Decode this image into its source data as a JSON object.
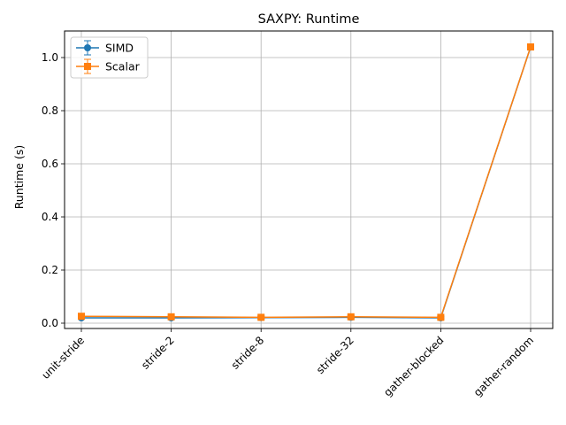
{
  "chart_data": {
    "type": "line",
    "title": "SAXPY: Runtime",
    "xlabel": "",
    "ylabel": "Runtime (s)",
    "categories": [
      "unit-stride",
      "stride-2",
      "stride-8",
      "stride-32",
      "gather-blocked",
      "gather-random"
    ],
    "ylim": [
      -0.02,
      1.1
    ],
    "yticks": [
      0.0,
      0.2,
      0.4,
      0.6,
      0.8,
      1.0
    ],
    "ytick_labels": [
      "0.0",
      "0.2",
      "0.4",
      "0.6",
      "0.8",
      "1.0"
    ],
    "grid": true,
    "legend_position": "upper-left",
    "error_bars": true,
    "series": [
      {
        "name": "SIMD",
        "marker": "circle",
        "color": "#1f77b4",
        "values": [
          0.02,
          0.02,
          0.021,
          0.022,
          0.02,
          1.04
        ]
      },
      {
        "name": "Scalar",
        "marker": "square",
        "color": "#ff7f0e",
        "values": [
          0.026,
          0.024,
          0.022,
          0.024,
          0.022,
          1.04
        ]
      }
    ]
  }
}
